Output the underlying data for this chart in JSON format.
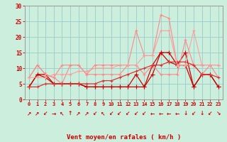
{
  "x": [
    0,
    1,
    2,
    3,
    4,
    5,
    6,
    7,
    8,
    9,
    10,
    11,
    12,
    13,
    14,
    15,
    16,
    17,
    18,
    19,
    20,
    21,
    22,
    23
  ],
  "lines": [
    {
      "y": [
        4,
        8,
        8,
        5,
        5,
        5,
        5,
        4,
        4,
        4,
        4,
        4,
        4,
        4,
        4,
        8,
        15,
        15,
        11,
        11,
        4,
        8,
        8,
        4
      ],
      "color": "#cc0000",
      "lw": 0.9,
      "marker": "+",
      "ms": 4
    },
    {
      "y": [
        4,
        8,
        7,
        5,
        5,
        5,
        5,
        4,
        4,
        4,
        4,
        4,
        4,
        8,
        4,
        11,
        15,
        12,
        11,
        15,
        4,
        8,
        8,
        4
      ],
      "color": "#cc0000",
      "lw": 0.9,
      "marker": "+",
      "ms": 4
    },
    {
      "y": [
        7,
        11,
        8,
        7,
        11,
        11,
        11,
        8,
        8,
        8,
        8,
        8,
        11,
        11,
        8,
        11,
        8,
        8,
        8,
        19,
        11,
        8,
        11,
        11
      ],
      "color": "#ff8888",
      "lw": 0.8,
      "marker": "+",
      "ms": 3
    },
    {
      "y": [
        7,
        11,
        8,
        7,
        5,
        11,
        11,
        8,
        11,
        11,
        11,
        11,
        11,
        22,
        14,
        14,
        27,
        26,
        11,
        11,
        11,
        11,
        11,
        7
      ],
      "color": "#ff8888",
      "lw": 0.8,
      "marker": "+",
      "ms": 3
    },
    {
      "y": [
        4,
        4,
        5,
        5,
        5,
        5,
        5,
        5,
        5,
        6,
        6,
        7,
        8,
        9,
        10,
        11,
        11,
        12,
        12,
        12,
        11,
        8,
        8,
        7
      ],
      "color": "#dd3333",
      "lw": 0.9,
      "marker": "+",
      "ms": 3
    },
    {
      "y": [
        7,
        7,
        7,
        8,
        8,
        8,
        9,
        9,
        10,
        10,
        10,
        11,
        11,
        11,
        14,
        14,
        22,
        22,
        11,
        11,
        22,
        11,
        11,
        11
      ],
      "color": "#ff9999",
      "lw": 0.7,
      "marker": "+",
      "ms": 3
    }
  ],
  "arrows": [
    "↗",
    "↗",
    "↙",
    "→",
    "↖",
    "↑",
    "↗",
    "↗",
    "↙",
    "↖",
    "↙",
    "↙",
    "↙",
    "↙",
    "↙",
    "←",
    "←",
    "←",
    "←",
    "↓",
    "↙",
    "↓",
    "↙",
    "↘"
  ],
  "xlabel": "Vent moyen/en rafales ( km/h )",
  "ylim": [
    0,
    30
  ],
  "yticks": [
    0,
    5,
    10,
    15,
    20,
    25,
    30
  ],
  "xticks": [
    0,
    1,
    2,
    3,
    4,
    5,
    6,
    7,
    8,
    9,
    10,
    11,
    12,
    13,
    14,
    15,
    16,
    17,
    18,
    19,
    20,
    21,
    22,
    23
  ],
  "bg_color": "#cceedd",
  "grid_color": "#99cccc",
  "tick_color": "#cc0000",
  "label_color": "#cc0000",
  "spine_color": "#999999"
}
